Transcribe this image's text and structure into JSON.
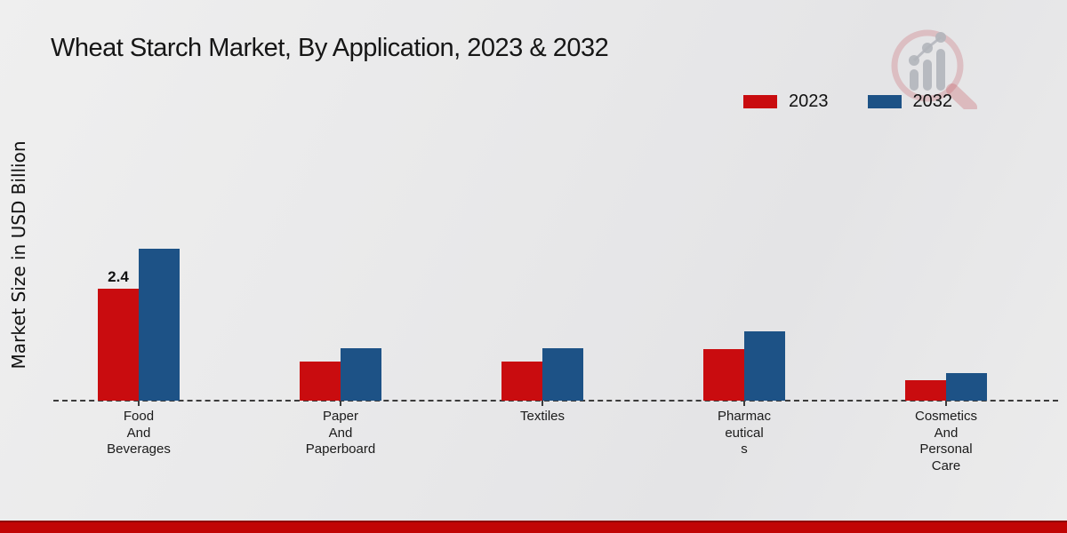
{
  "header": {
    "title": "Wheat Starch Market, By Application, 2023 & 2032"
  },
  "legend": {
    "items": [
      {
        "label": "2023",
        "color": "#c90c0f"
      },
      {
        "label": "2032",
        "color": "#1d5286"
      }
    ]
  },
  "chart_data": {
    "type": "bar",
    "title": "Wheat Starch Market, By Application, 2023 & 2032",
    "xlabel": "",
    "ylabel": "Market Size in USD Billion",
    "categories": [
      "Food And Beverages",
      "Paper And Paperboard",
      "Textiles",
      "Pharmaceuticals",
      "Cosmetics And Personal Care"
    ],
    "category_lines": [
      [
        "Food",
        "And",
        "Beverages"
      ],
      [
        "Paper",
        "And",
        "Paperboard"
      ],
      [
        "Textiles"
      ],
      [
        "Pharmac",
        "eutical",
        "s"
      ],
      [
        "Cosmetics",
        "And",
        "Personal",
        "Care"
      ]
    ],
    "series": [
      {
        "name": "2023",
        "color": "#c90c0f",
        "values": [
          2.4,
          0.84,
          0.84,
          1.1,
          0.44
        ],
        "data_labels": [
          "2.4",
          "",
          "",
          "",
          ""
        ]
      },
      {
        "name": "2032",
        "color": "#1d5286",
        "values": [
          3.26,
          1.12,
          1.12,
          1.49,
          0.59
        ],
        "data_labels": [
          "",
          "",
          "",
          "",
          ""
        ]
      }
    ],
    "ylim": [
      0,
      3.5
    ],
    "grid": false,
    "legend_position": "top-right",
    "baseline_style": "dashed"
  },
  "branding": {
    "logo_name": "market-research-magnifier-logo",
    "footer_stripe_color": "#c10505",
    "footer_stripe_edge_color": "#8f0302"
  }
}
